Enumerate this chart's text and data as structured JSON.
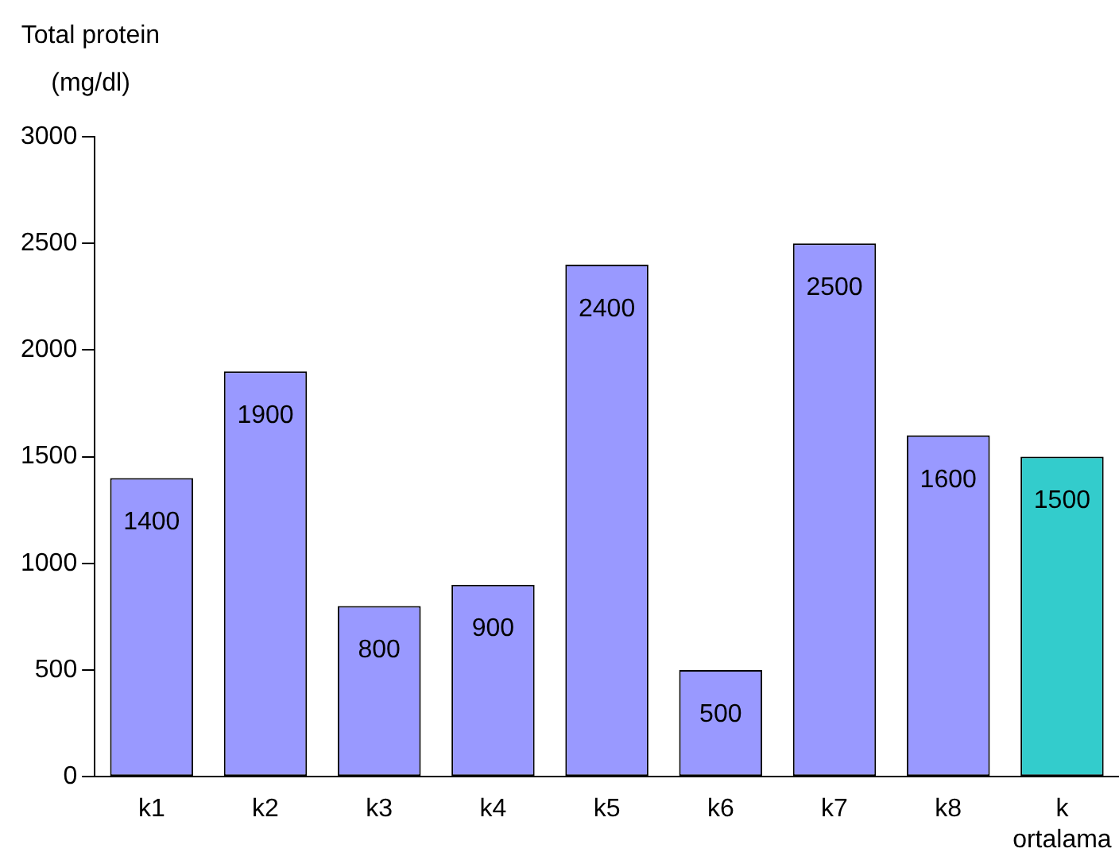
{
  "chart_data": {
    "type": "bar",
    "ylabel": "Total protein (mg/dl)",
    "categories": [
      "k1",
      "k2",
      "k3",
      "k4",
      "k5",
      "k6",
      "k7",
      "k8",
      "k\nortalama"
    ],
    "values": [
      1400,
      1900,
      800,
      900,
      2400,
      500,
      2500,
      1600,
      1500
    ],
    "colors": [
      "#9999ff",
      "#9999ff",
      "#9999ff",
      "#9999ff",
      "#9999ff",
      "#9999ff",
      "#9999ff",
      "#9999ff",
      "#33cccc"
    ],
    "ylim": [
      0,
      3000
    ],
    "yticks": [
      0,
      500,
      1000,
      1500,
      2000,
      2500,
      3000
    ],
    "grid": false,
    "legend": false,
    "data_labels": true
  }
}
